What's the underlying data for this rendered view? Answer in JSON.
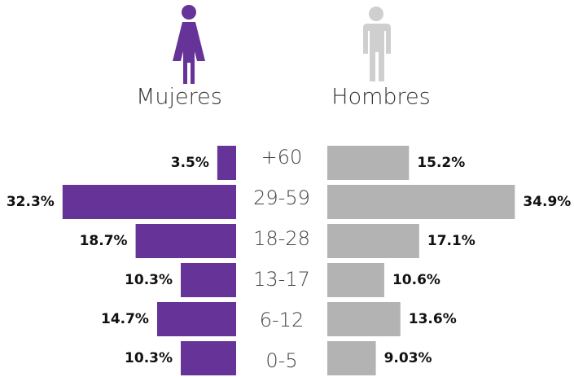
{
  "chart_data": {
    "type": "pyramid",
    "categories": [
      "+60",
      "29-59",
      "18-28",
      "13-17",
      "6-12",
      "0-5"
    ],
    "series": [
      {
        "name": "Mujeres",
        "color": "#663399",
        "values": [
          3.5,
          32.3,
          18.7,
          10.3,
          14.7,
          10.3
        ],
        "value_labels": [
          "3.5%",
          "32.3%",
          "18.7%",
          "10.3%",
          "14.7%",
          "10.3%"
        ]
      },
      {
        "name": "Hombres",
        "color": "#b3b3b3",
        "values": [
          15.2,
          34.9,
          17.1,
          10.6,
          13.6,
          9.03
        ],
        "value_labels": [
          "15.2%",
          "34.9%",
          "17.1%",
          "10.6%",
          "13.6%",
          "9.03%"
        ]
      }
    ]
  }
}
